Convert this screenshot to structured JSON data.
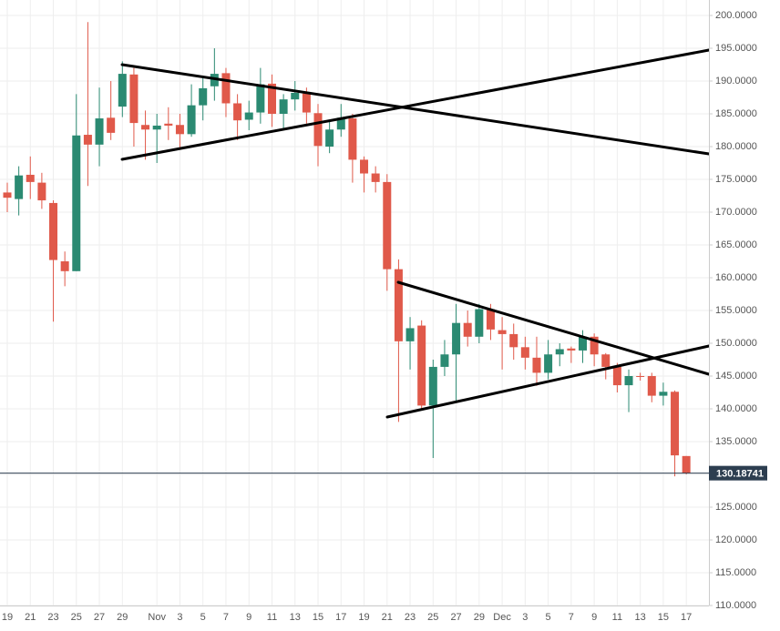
{
  "chart_data": {
    "type": "candlestick",
    "categories": [
      "19",
      null,
      "21",
      null,
      "23",
      null,
      "25",
      null,
      "27",
      null,
      "29",
      null,
      null,
      "Nov",
      null,
      "3",
      null,
      "5",
      null,
      "7",
      null,
      "9",
      null,
      "11",
      null,
      "13",
      null,
      "15",
      null,
      "17",
      null,
      "19",
      null,
      "21",
      null,
      "23",
      null,
      "25",
      null,
      "27",
      null,
      "29",
      null,
      "Dec",
      null,
      "3",
      null,
      "5",
      null,
      "7",
      null,
      "9",
      null,
      "11",
      null,
      "13",
      null,
      "15",
      null,
      "17"
    ],
    "open": [
      173,
      172,
      175.7,
      174.5,
      171.4,
      162.5,
      161,
      181.8,
      180.3,
      184.4,
      186.1,
      191,
      183.3,
      182.6,
      183.5,
      183.3,
      181.9,
      186.3,
      189.2,
      191.2,
      186.6,
      184.1,
      185.2,
      189.6,
      185,
      187.2,
      188.1,
      185.1,
      180,
      182.6,
      184.3,
      178,
      175.9,
      174.6,
      161.3,
      150.3,
      152.7,
      140.5,
      146.4,
      148.3,
      153.1,
      151,
      155.2,
      152,
      151.4,
      149.4,
      147.8,
      145.5,
      148.3,
      149.2,
      148.9,
      151,
      148.3,
      146.4,
      143.6,
      145,
      145,
      142,
      142.6,
      132.8
    ],
    "high": [
      174.5,
      177,
      178.5,
      176,
      171.8,
      164,
      188,
      199,
      189,
      190,
      193,
      192,
      185.5,
      185,
      186,
      185,
      189.5,
      190.5,
      195,
      192,
      188,
      187,
      192,
      191,
      188,
      190,
      189,
      186.5,
      184,
      186.5,
      185,
      178.5,
      177,
      175.8,
      162.8,
      154,
      153.5,
      147.5,
      150.5,
      156,
      155,
      156,
      156,
      154,
      153,
      151,
      151,
      150.5,
      150,
      149.5,
      152,
      151.5,
      148.5,
      147,
      146,
      145.5,
      145.5,
      144,
      142.8,
      132.8
    ],
    "low": [
      170,
      169.5,
      172,
      170.5,
      153.3,
      158.7,
      161,
      174,
      177,
      181,
      184.5,
      180,
      178,
      177.5,
      181,
      179.5,
      181.5,
      184,
      187,
      184.5,
      181,
      182.5,
      183.5,
      183,
      182.5,
      185.5,
      183.5,
      177,
      179,
      181.5,
      174.5,
      173,
      173,
      158,
      138,
      146,
      140,
      132.5,
      145,
      141,
      149.5,
      150,
      150.5,
      146,
      147.5,
      146,
      143.5,
      144.5,
      146.5,
      147,
      147,
      146.5,
      144.5,
      142.5,
      139.5,
      144.3,
      141,
      140.5,
      129.7,
      130
    ],
    "close": [
      172.2,
      175.6,
      174.6,
      171.8,
      162.7,
      161,
      181.7,
      180.3,
      184.3,
      182.1,
      191.1,
      183.6,
      182.6,
      183.2,
      183.2,
      181.9,
      186.3,
      188.9,
      191.1,
      186.6,
      184,
      185.2,
      189.5,
      185,
      187.2,
      188.2,
      185.2,
      180.1,
      182.6,
      184.4,
      178,
      175.9,
      174.6,
      161.3,
      150.3,
      152.3,
      140.5,
      146.4,
      148.3,
      153.1,
      151,
      155.2,
      152.1,
      151.4,
      149.4,
      147.8,
      145.5,
      148.3,
      149.1,
      148.9,
      151,
      148.3,
      146.4,
      143.6,
      145,
      144.9,
      142,
      142.6,
      132.9,
      130.18741
    ],
    "up_color": "#2b8a72",
    "down_color": "#e0594a",
    "last_price_color": "#2d3e50",
    "ylim": [
      110,
      200
    ],
    "yticks": [
      {
        "value": 110,
        "label": "110.0000"
      },
      {
        "value": 115,
        "label": "115.0000"
      },
      {
        "value": 120,
        "label": "120.0000"
      },
      {
        "value": 125,
        "label": "125.0000"
      },
      {
        "value": 130,
        "label": "130.0000"
      },
      {
        "value": 135,
        "label": "135.0000"
      },
      {
        "value": 140,
        "label": "140.0000"
      },
      {
        "value": 145,
        "label": "145.0000"
      },
      {
        "value": 150,
        "label": "150.0000"
      },
      {
        "value": 155,
        "label": "155.0000"
      },
      {
        "value": 160,
        "label": "160.0000"
      },
      {
        "value": 165,
        "label": "165.0000"
      },
      {
        "value": 170,
        "label": "170.0000"
      },
      {
        "value": 175,
        "label": "175.0000"
      },
      {
        "value": 180,
        "label": "180.0000"
      },
      {
        "value": 185,
        "label": "185.0000"
      },
      {
        "value": 190,
        "label": "190.0000"
      },
      {
        "value": 195,
        "label": "195.0000"
      },
      {
        "value": 200,
        "label": "200.0000"
      }
    ],
    "grid": true
  }
}
